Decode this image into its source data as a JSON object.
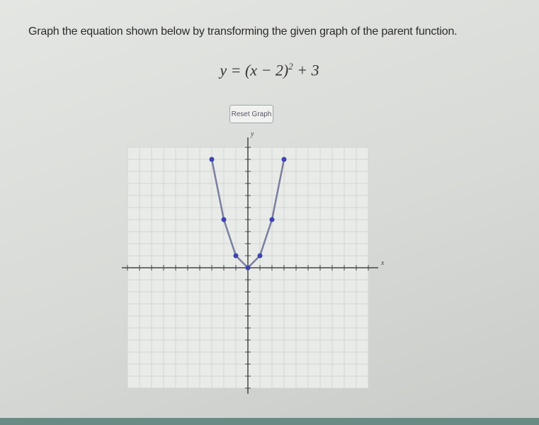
{
  "instruction": "Graph the equation shown below by transforming the given graph of the parent function.",
  "equation": {
    "base": "y = (x − 2)",
    "exponent": "2",
    "tail": " + 3"
  },
  "button": "Reset Graph",
  "graph": {
    "x_label": "x",
    "y_label": "y",
    "xlim": [
      -10,
      10
    ],
    "ylim": [
      -10,
      10
    ],
    "xticks": [
      -10,
      -9,
      -8,
      -7,
      -6,
      -5,
      -4,
      -3,
      -2,
      -1,
      0,
      1,
      2,
      3,
      4,
      5,
      6,
      7,
      8,
      9,
      10
    ],
    "yticks": [
      -10,
      -9,
      -8,
      -7,
      -6,
      -5,
      -4,
      -3,
      -2,
      -1,
      0,
      1,
      2,
      3,
      4,
      5,
      6,
      7,
      8,
      9,
      10
    ],
    "points": [
      {
        "x": -3,
        "y": 9
      },
      {
        "x": -2,
        "y": 4
      },
      {
        "x": -1,
        "y": 1
      },
      {
        "x": 0,
        "y": 0
      },
      {
        "x": 1,
        "y": 1
      },
      {
        "x": 2,
        "y": 4
      },
      {
        "x": 3,
        "y": 9
      }
    ]
  }
}
